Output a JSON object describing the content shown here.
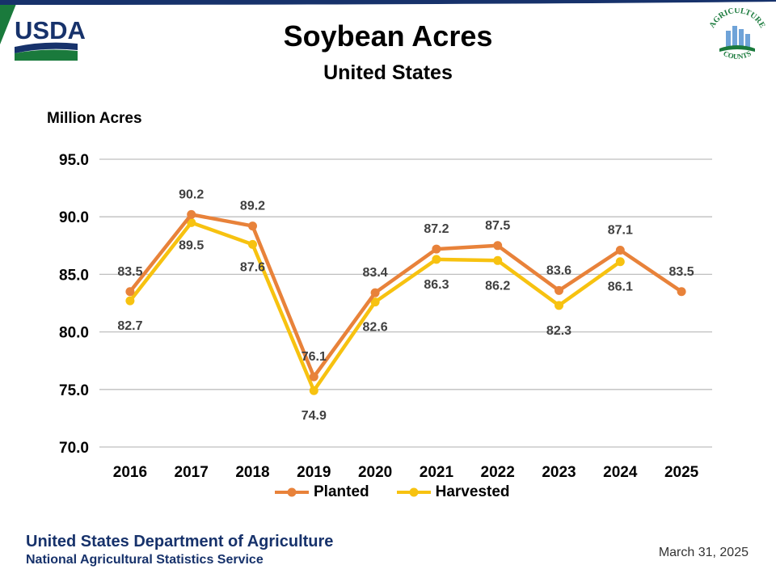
{
  "header": {
    "logo_text": "USDA",
    "badge_text_top": "AGRICULTURE",
    "badge_text_bottom": "COUNTS"
  },
  "footer": {
    "org": "United States Department of Agriculture",
    "sub_org": "National Agricultural Statistics Service",
    "date": "March 31, 2025"
  },
  "colors": {
    "planted": "#E8823A",
    "harvested": "#F7C210",
    "grid": "#bfbfbf",
    "usda_blue": "#17326b",
    "usda_green": "#1a7a3c"
  },
  "chart_data": {
    "type": "line",
    "title": "Soybean Acres",
    "subtitle": "United States",
    "xlabel": "",
    "ylabel": "Million Acres",
    "ylim": [
      70.0,
      95.0
    ],
    "yticks": [
      "70.0",
      "75.0",
      "80.0",
      "85.0",
      "90.0",
      "95.0"
    ],
    "grid": true,
    "legend_position": "bottom",
    "categories": [
      "2016",
      "2017",
      "2018",
      "2019",
      "2020",
      "2021",
      "2022",
      "2023",
      "2024",
      "2025"
    ],
    "series": [
      {
        "name": "Planted",
        "values": [
          83.5,
          90.2,
          89.2,
          76.1,
          83.4,
          87.2,
          87.5,
          83.6,
          87.1,
          83.5
        ],
        "labels": [
          "83.5",
          "90.2",
          "89.2",
          "76.1",
          "83.4",
          "87.2",
          "87.5",
          "83.6",
          "87.1",
          "83.5"
        ]
      },
      {
        "name": "Harvested",
        "values": [
          82.7,
          89.5,
          87.6,
          74.9,
          82.6,
          86.3,
          86.2,
          82.3,
          86.1,
          null
        ],
        "labels": [
          "82.7",
          "89.5",
          "87.6",
          "74.9",
          "82.6",
          "86.3",
          "86.2",
          "82.3",
          "86.1",
          null
        ]
      }
    ]
  }
}
